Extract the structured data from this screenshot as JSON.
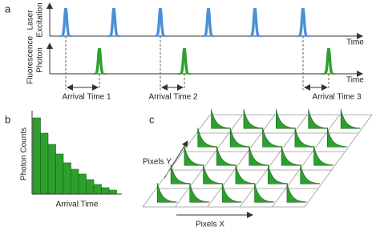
{
  "panels": {
    "a": {
      "label": "a",
      "laser_label": [
        "Laser",
        "Excitation"
      ],
      "photon_label": [
        "Fluorescence",
        "Photon"
      ],
      "time_label_top": "Time",
      "time_label_bottom": "Time",
      "arrival_labels": [
        "Arrival Time 1",
        "Arrival Time 2",
        "Arrival Time 3"
      ]
    },
    "b": {
      "label": "b",
      "y_label": "Photon Counts",
      "x_label": "Arrival Time"
    },
    "c": {
      "label": "c",
      "y_label": "Pixels Y",
      "x_label": "Pixels X"
    }
  }
}
